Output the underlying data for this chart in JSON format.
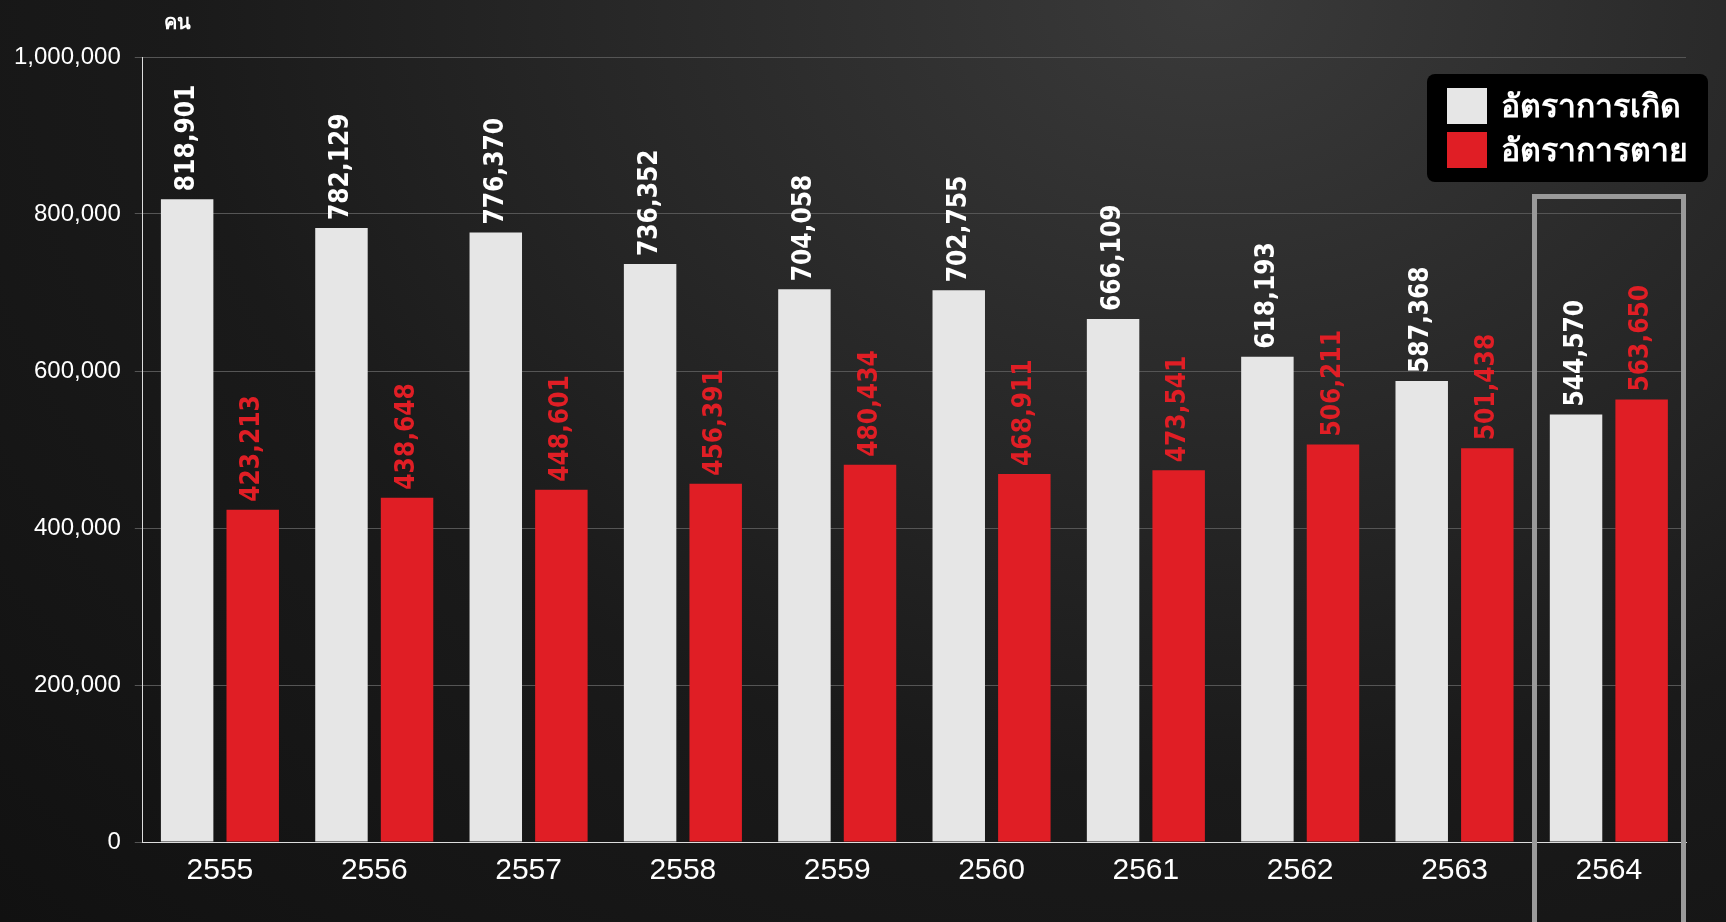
{
  "chart_data": {
    "type": "bar",
    "ylabel": "คน",
    "categories": [
      "2555",
      "2556",
      "2557",
      "2558",
      "2559",
      "2560",
      "2561",
      "2562",
      "2563",
      "2564"
    ],
    "series": [
      {
        "name": "อัตราการเกิด",
        "color": "#e6e6e6",
        "values": [
          818901,
          782129,
          776370,
          736352,
          704058,
          702755,
          666109,
          618193,
          587368,
          544570
        ],
        "value_labels": [
          "818,901",
          "782,129",
          "776,370",
          "736,352",
          "704,058",
          "702,755",
          "666,109",
          "618,193",
          "587,368",
          "544,570"
        ]
      },
      {
        "name": "อัตราการตาย",
        "color": "#e01e25",
        "values": [
          423213,
          438648,
          448601,
          456391,
          480434,
          468911,
          473541,
          506211,
          501438,
          563650
        ],
        "value_labels": [
          "423,213",
          "438,648",
          "448,601",
          "456,391",
          "480,434",
          "468,911",
          "473,541",
          "506,211",
          "501,438",
          "563,650"
        ]
      }
    ],
    "ylim": [
      0,
      1000000
    ],
    "yticks": [
      0,
      {
        "value": 200000,
        "label": "200,000"
      },
      {
        "value": 400000,
        "label": "400,000"
      },
      {
        "value": 600000,
        "label": "600,000"
      },
      {
        "value": 800000,
        "label": "800,000"
      },
      {
        "value": 1000000,
        "label": "1,000,000"
      }
    ],
    "grid": "y",
    "legend": "top right"
  }
}
